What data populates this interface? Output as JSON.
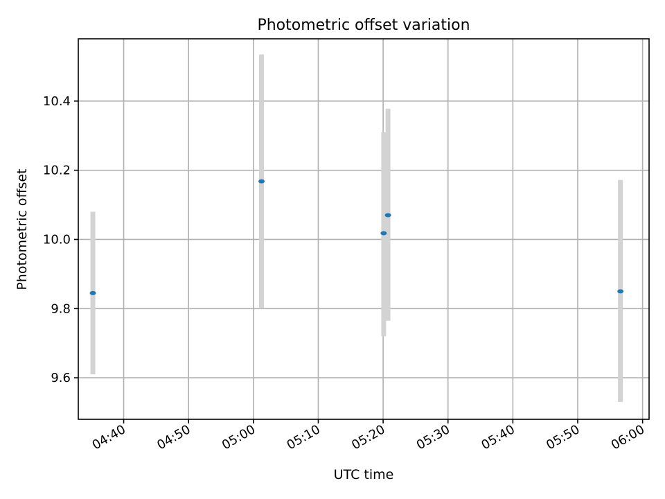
{
  "chart_data": {
    "type": "scatter",
    "title": "Photometric offset variation",
    "xlabel": "UTC time",
    "ylabel": "Photometric offset",
    "xlim": [
      "04:33:00",
      "06:01:00"
    ],
    "ylim": [
      9.48,
      10.58
    ],
    "grid": true,
    "x_ticks": [
      "04:40",
      "04:50",
      "05:00",
      "05:10",
      "05:20",
      "05:30",
      "05:40",
      "05:50",
      "06:00"
    ],
    "y_ticks": [
      9.6,
      9.8,
      10.0,
      10.2,
      10.4
    ],
    "y_tick_labels": [
      "9.6",
      "9.8",
      "10.0",
      "10.2",
      "10.4"
    ],
    "series": [
      {
        "marker_color": "#1f77b4",
        "errorbar_color": "#d3d3d3",
        "points": [
          {
            "x": "04:35:15",
            "y": 9.845,
            "ylow": 9.61,
            "yhigh": 10.08
          },
          {
            "x": "05:01:15",
            "y": 10.168,
            "ylow": 9.8,
            "yhigh": 10.535
          },
          {
            "x": "05:20:05",
            "y": 10.018,
            "ylow": 9.72,
            "yhigh": 10.31
          },
          {
            "x": "05:20:45",
            "y": 10.07,
            "ylow": 9.765,
            "yhigh": 10.378
          },
          {
            "x": "05:56:35",
            "y": 9.85,
            "ylow": 9.53,
            "yhigh": 10.172
          }
        ]
      }
    ]
  }
}
